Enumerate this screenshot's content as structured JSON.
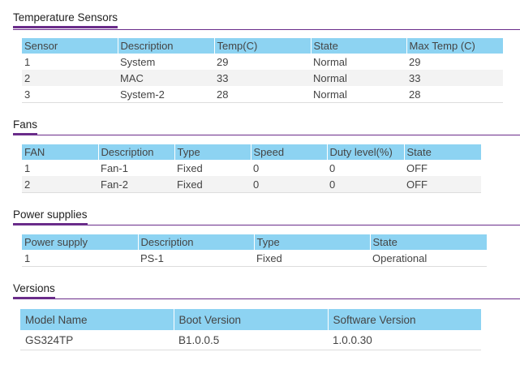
{
  "temperature": {
    "title": "Temperature Sensors",
    "headers": [
      "Sensor",
      "Description",
      "Temp(C)",
      "State",
      "Max Temp (C)"
    ],
    "rows": [
      [
        "1",
        "System",
        "29",
        "Normal",
        "29"
      ],
      [
        "2",
        "MAC",
        "33",
        "Normal",
        "33"
      ],
      [
        "3",
        "System-2",
        "28",
        "Normal",
        "28"
      ]
    ]
  },
  "fans": {
    "title": "Fans",
    "headers": [
      "FAN",
      "Description",
      "Type",
      "Speed",
      "Duty level(%)",
      "State"
    ],
    "rows": [
      [
        "1",
        "Fan-1",
        "Fixed",
        "0",
        "0",
        "OFF"
      ],
      [
        "2",
        "Fan-2",
        "Fixed",
        "0",
        "0",
        "OFF"
      ]
    ]
  },
  "power": {
    "title": "Power supplies",
    "headers": [
      "Power supply",
      "Description",
      "Type",
      "State"
    ],
    "rows": [
      [
        "1",
        "PS-1",
        "Fixed",
        "Operational"
      ]
    ]
  },
  "versions": {
    "title": "Versions",
    "headers": [
      "Model Name",
      "Boot Version",
      "Software Version"
    ],
    "rows": [
      [
        "GS324TP",
        "B1.0.0.5",
        "1.0.0.30"
      ]
    ]
  },
  "colors": {
    "accent": "#6a2c8a",
    "header_bg": "#8dd3f2",
    "stripe": "#f3f3f3"
  }
}
